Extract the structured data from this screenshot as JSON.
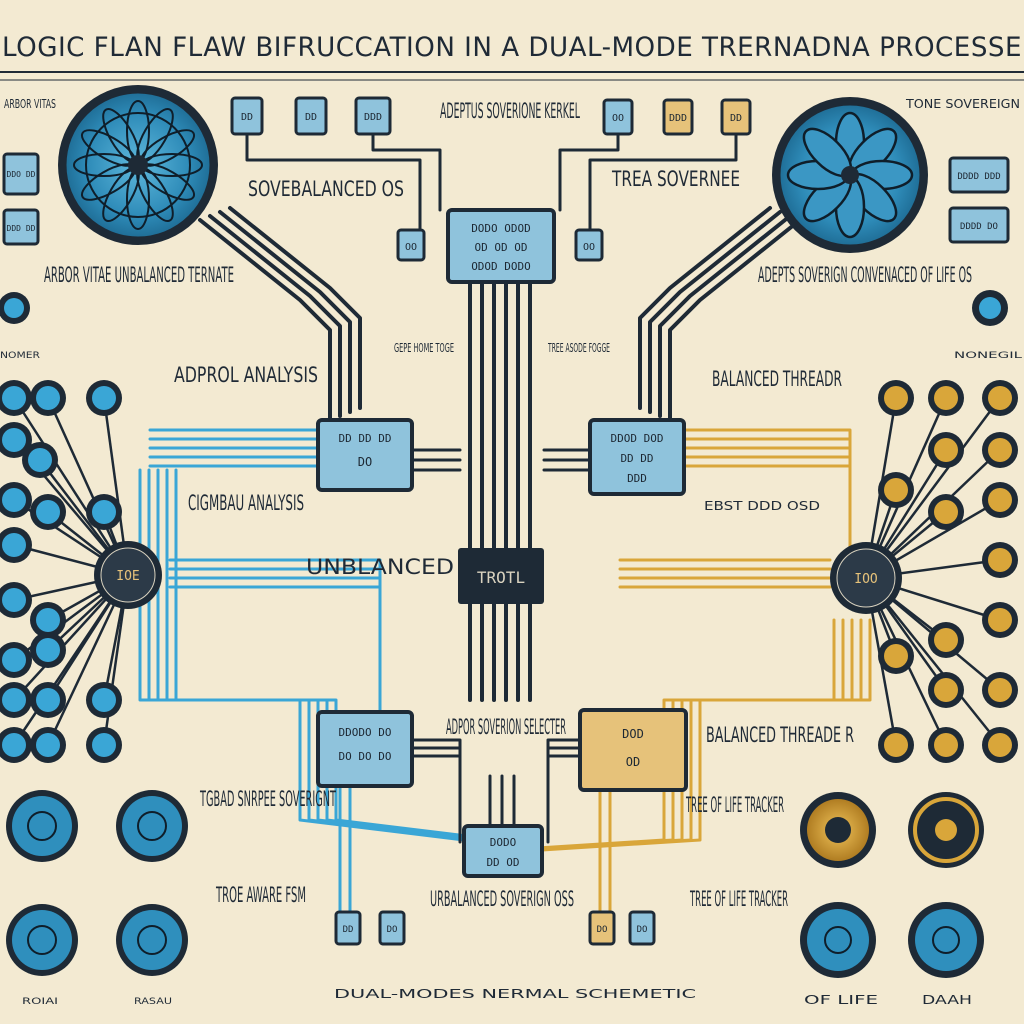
{
  "title": "LOGIC FLAN FLAW BIFRUCCATION IN A DUAL-MODE TRERNADNA PROCESSE",
  "footer": "DUAL-MODES NERMAL SCHEMETIC",
  "colors": {
    "background": "#f3ead2",
    "ink": "#1f2a36",
    "blue_trace": "#3aa6d6",
    "gold_trace": "#d9a63a",
    "chip_fill": "#8fc3dc",
    "chip_fill_gold": "#e6c27a",
    "node_dark": "#1e2a36"
  },
  "labels": {
    "arbor_top_left": "ARBOR VITAS",
    "sovebalanced_os": "SOVEBALANCED OS",
    "adeptus_kernel": "ADEPTUS SOVERIONE KERKEL",
    "trea_sovernee": "TREA SOVERNEE",
    "tone_sovereign": "TONE SOVEREIGN",
    "arbor_vitae_unbalanced": "ARBOR VITAE UNBALANCED TERNATE",
    "adepts_sovereign": "ADEPTS SOVERIGN CONVENACED OF LIFE OS",
    "left_small_bottom": "NOMER",
    "right_small_bottom": "NONEGIL",
    "gepe_mode": "GEPE HOME TOGE",
    "tree_asode": "TREE ASODE FOGGE",
    "adprol_analysis": "ADPROL ANALYSIS",
    "balanced_threadr": "BALANCED THREADR",
    "cigmbau_analysis": "CIGMBAU ANALYSIS",
    "unbalanced": "UNBLANCED",
    "center_chip": "TROTL",
    "ebst_ode": "EBST DDD OSD",
    "adpor_selector": "ADPOR SOVERION SELECTER",
    "balanced_thread": "BALANCED THREADE R",
    "tgbad_sovereignt": "TGBAD SNRPEE SOVERIGNT",
    "tree_tracker_top": "TREE OF LIFE TRACKER",
    "tree_aware_fsm": "TROE AWARE FSM",
    "unbalanced_sovereign": "URBALANCED SOVERIGN OSS",
    "tree_tracker_bottom": "TREE OF LIFE TRACKER",
    "bottom_left_a": "ROIAI",
    "bottom_left_b": "RASAU",
    "bottom_right_a": "OF LIFE",
    "bottom_right_b": "DAAH",
    "node_left": "IOE",
    "node_right": "IOO"
  },
  "chips": {
    "kernel": [
      "DODO ODOD",
      "OD OD OD",
      "ODOD DODO"
    ],
    "mid_left": [
      "DD DD DD",
      "DO"
    ],
    "mid_right": [
      "DDOD DOD",
      "DD DD",
      "DDD"
    ],
    "low_left": [
      "DDODO DO",
      "DO DO DO"
    ],
    "low_right": [
      "DOD",
      "OD"
    ],
    "selector": [
      "DODO",
      "DD OD"
    ],
    "top_tiles": [
      "DD",
      "DD",
      "DDD",
      "OO",
      "DDD",
      "DD"
    ],
    "side_tiles_left": [
      "DDO DD",
      "DDD DD"
    ],
    "side_tiles_right": [
      "DDDD DDD",
      "DDDD DO"
    ],
    "bottom_tiles": [
      "DD",
      "DO",
      "DO",
      "DO"
    ],
    "ports": [
      "OO",
      "OO"
    ]
  }
}
